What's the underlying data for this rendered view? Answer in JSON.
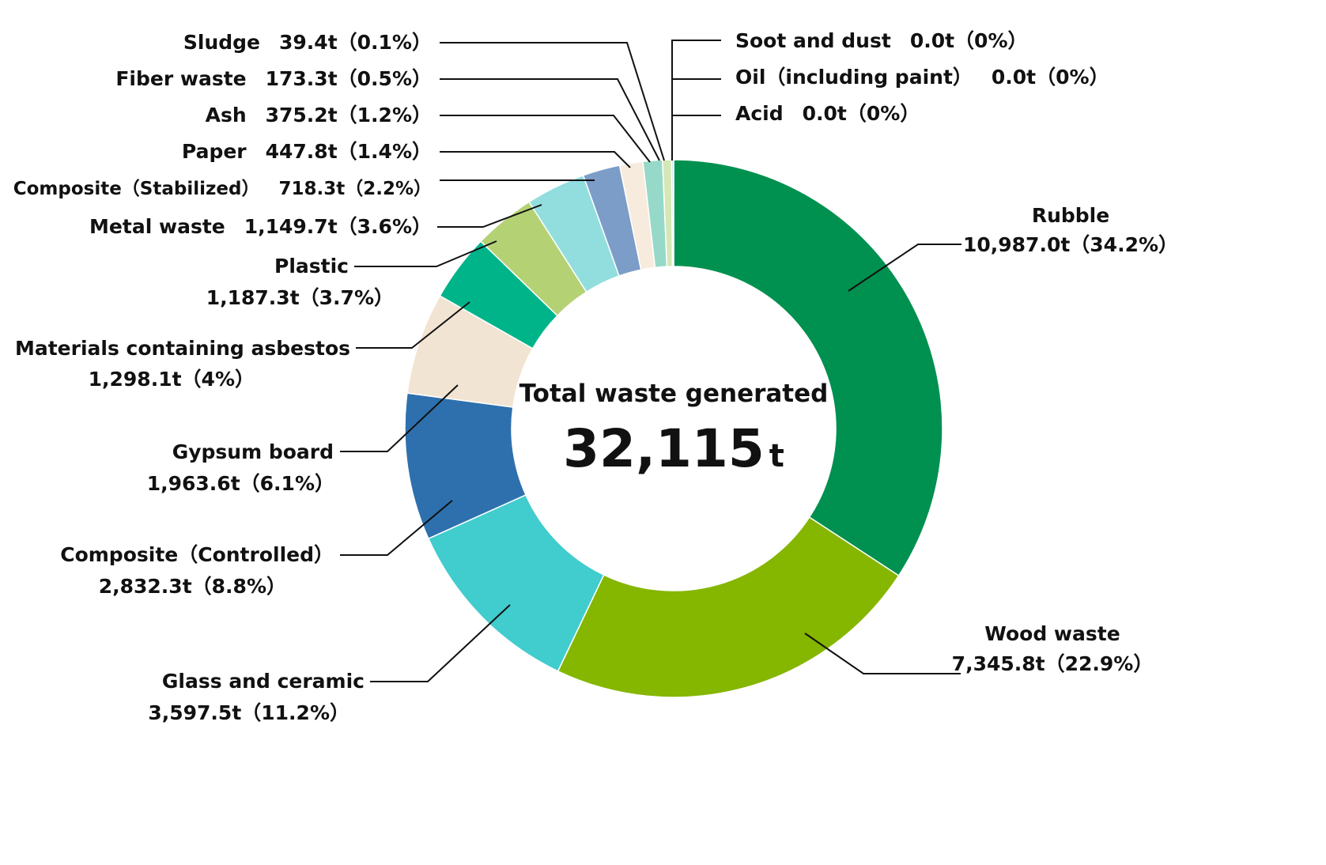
{
  "chart_data": {
    "type": "pie",
    "center_title": "Total waste generated",
    "center_value": "32,115",
    "center_unit": "t",
    "slices": [
      {
        "name": "Rubble",
        "value_label": "10,987.0t（34.2%）",
        "value": 10987.0,
        "percent": 34.2,
        "color": "#00904F"
      },
      {
        "name": "Wood waste",
        "value_label": "7,345.8t（22.9%）",
        "value": 7345.8,
        "percent": 22.9,
        "color": "#85B600"
      },
      {
        "name": "Glass and ceramic",
        "value_label": "3,597.5t（11.2%）",
        "value": 3597.5,
        "percent": 11.2,
        "color": "#41CCCE"
      },
      {
        "name": "Composite（Controlled）",
        "value_label": "2,832.3t（8.8%）",
        "value": 2832.3,
        "percent": 8.8,
        "color": "#2E70AE"
      },
      {
        "name": "Gypsum board",
        "value_label": "1,963.6t（6.1%）",
        "value": 1963.6,
        "percent": 6.1,
        "color": "#F2E4D2"
      },
      {
        "name": "Materials containing asbestos",
        "value_label": "1,298.1t（4%）",
        "value": 1298.1,
        "percent": 4.0,
        "color": "#00B48A"
      },
      {
        "name": "Plastic",
        "value_label": "1,187.3t（3.7%）",
        "value": 1187.3,
        "percent": 3.7,
        "color": "#B4D274"
      },
      {
        "name": "Metal waste",
        "value_label": "1,149.7t（3.6%）",
        "value": 1149.7,
        "percent": 3.6,
        "color": "#92DEDE"
      },
      {
        "name": "Composite（Stabilized）",
        "value_label": "718.3t（2.2%）",
        "value": 718.3,
        "percent": 2.2,
        "color": "#7B9DC7"
      },
      {
        "name": "Paper",
        "value_label": "447.8t（1.4%）",
        "value": 447.8,
        "percent": 1.4,
        "color": "#F7EBDD"
      },
      {
        "name": "Ash",
        "value_label": "375.2t（1.2%）",
        "value": 375.2,
        "percent": 1.2,
        "color": "#97D9C8"
      },
      {
        "name": "Fiber waste",
        "value_label": "173.3t（0.5%）",
        "value": 173.3,
        "percent": 0.5,
        "color": "#D4E7B5"
      },
      {
        "name": "Sludge",
        "value_label": "39.4t（0.1%）",
        "value": 39.4,
        "percent": 0.1,
        "color": "#C6E8F0"
      },
      {
        "name": "Soot and dust",
        "value_label": "0.0t（0%）",
        "value": 0.0,
        "percent": 0,
        "color": "#CCCCCC"
      },
      {
        "name": "Oil（including paint）",
        "value_label": "0.0t（0%）",
        "value": 0.0,
        "percent": 0,
        "color": "#CCCCCC"
      },
      {
        "name": "Acid",
        "value_label": "0.0t（0%）",
        "value": 0.0,
        "percent": 0,
        "color": "#CCCCCC"
      }
    ]
  }
}
